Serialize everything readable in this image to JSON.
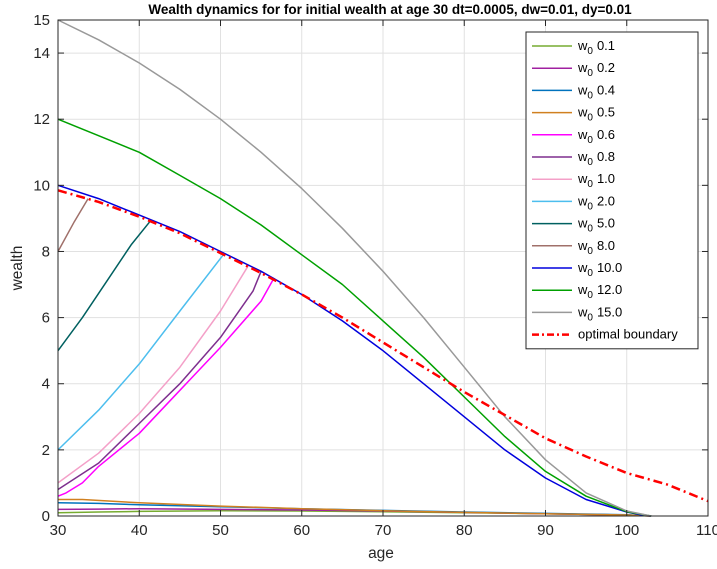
{
  "chart_data": {
    "type": "line",
    "title": "Wealth dynamics for for initial wealth at age 30 dt=0.0005, dw=0.01, dy=0.01",
    "xlabel": "age",
    "ylabel": "wealth",
    "xlim": [
      30,
      110
    ],
    "ylim": [
      0,
      15
    ],
    "xticks": [
      30,
      40,
      50,
      60,
      70,
      80,
      90,
      100,
      110
    ],
    "yticks": [
      0,
      2,
      4,
      6,
      8,
      10,
      12,
      14,
      15
    ],
    "grid": true,
    "legend_position": "top-right",
    "legend_prefix": "w",
    "legend_subscript": "0",
    "series": [
      {
        "name": "0.1",
        "color": "#77ac30",
        "dash": "solid",
        "x": [
          30,
          35,
          40,
          50,
          60,
          70,
          80,
          90,
          100,
          103
        ],
        "y": [
          0.1,
          0.12,
          0.14,
          0.16,
          0.15,
          0.13,
          0.1,
          0.07,
          0.03,
          0.0
        ]
      },
      {
        "name": "0.2",
        "color": "#a020a0",
        "dash": "solid",
        "x": [
          30,
          35,
          40,
          50,
          60,
          70,
          80,
          90,
          100,
          103
        ],
        "y": [
          0.2,
          0.21,
          0.22,
          0.2,
          0.18,
          0.15,
          0.11,
          0.07,
          0.03,
          0.0
        ]
      },
      {
        "name": "0.4",
        "color": "#0072bd",
        "dash": "solid",
        "x": [
          30,
          35,
          40,
          50,
          60,
          70,
          80,
          90,
          100,
          103
        ],
        "y": [
          0.4,
          0.38,
          0.34,
          0.28,
          0.22,
          0.17,
          0.12,
          0.08,
          0.04,
          0.0
        ]
      },
      {
        "name": "0.5",
        "color": "#d08020",
        "dash": "solid",
        "x": [
          30,
          33,
          40,
          50,
          60,
          70,
          80,
          90,
          100,
          103
        ],
        "y": [
          0.5,
          0.5,
          0.4,
          0.3,
          0.22,
          0.16,
          0.11,
          0.07,
          0.03,
          0.0
        ]
      },
      {
        "name": "0.6",
        "color": "#ff00ff",
        "dash": "solid",
        "x": [
          30,
          31,
          33,
          35,
          40,
          45,
          50,
          55,
          56.6
        ],
        "y": [
          0.6,
          0.7,
          1.0,
          1.5,
          2.5,
          3.8,
          5.1,
          6.5,
          7.2
        ]
      },
      {
        "name": "0.8",
        "color": "#7e2f8e",
        "dash": "solid",
        "x": [
          30,
          35,
          40,
          45,
          50,
          54,
          55
        ],
        "y": [
          0.8,
          1.6,
          2.8,
          4.0,
          5.4,
          6.8,
          7.4
        ]
      },
      {
        "name": "1.0",
        "color": "#f4a0c8",
        "dash": "solid",
        "x": [
          30,
          35,
          40,
          45,
          50,
          53.5
        ],
        "y": [
          1.0,
          1.9,
          3.1,
          4.5,
          6.2,
          7.6
        ]
      },
      {
        "name": "2.0",
        "color": "#4dbeee",
        "dash": "solid",
        "x": [
          30,
          35,
          40,
          45,
          50.5
        ],
        "y": [
          2.0,
          3.2,
          4.6,
          6.2,
          7.95
        ]
      },
      {
        "name": "5.0",
        "color": "#006060",
        "dash": "solid",
        "x": [
          30,
          33,
          36,
          39,
          41.3
        ],
        "y": [
          5.0,
          6.0,
          7.1,
          8.2,
          8.9
        ]
      },
      {
        "name": "8.0",
        "color": "#a0706a",
        "dash": "solid",
        "x": [
          30,
          32,
          33.7
        ],
        "y": [
          8.0,
          8.9,
          9.6
        ]
      },
      {
        "name": "10.0",
        "color": "#0000dd",
        "dash": "solid",
        "x": [
          30,
          35,
          40,
          45,
          50,
          55,
          60,
          65,
          70,
          75,
          80,
          85,
          90,
          95,
          100,
          102,
          103
        ],
        "y": [
          10.0,
          9.6,
          9.1,
          8.6,
          8.0,
          7.4,
          6.7,
          5.9,
          5.0,
          4.0,
          3.0,
          2.0,
          1.15,
          0.5,
          0.12,
          0.02,
          0.0
        ]
      },
      {
        "name": "12.0",
        "color": "#00a000",
        "dash": "solid",
        "x": [
          30,
          35,
          40,
          45,
          50,
          55,
          60,
          65,
          70,
          75,
          80,
          85,
          90,
          95,
          100,
          103
        ],
        "y": [
          12.0,
          11.5,
          11.0,
          10.3,
          9.6,
          8.8,
          7.9,
          7.0,
          5.9,
          4.8,
          3.6,
          2.4,
          1.35,
          0.6,
          0.13,
          0.0
        ]
      },
      {
        "name": "15.0",
        "color": "#999999",
        "dash": "solid",
        "x": [
          30,
          35,
          40,
          45,
          50,
          55,
          60,
          65,
          70,
          75,
          80,
          85,
          90,
          95,
          100,
          103
        ],
        "y": [
          15.0,
          14.4,
          13.7,
          12.9,
          12.0,
          11.0,
          9.9,
          8.7,
          7.4,
          6.0,
          4.5,
          3.0,
          1.7,
          0.7,
          0.15,
          0.0
        ]
      },
      {
        "name": "optimal boundary",
        "color": "#ff0000",
        "dash": "dashdot",
        "x": [
          30,
          35,
          40,
          45,
          50,
          55,
          60,
          65,
          70,
          75,
          80,
          85,
          90,
          95,
          100,
          105,
          110
        ],
        "y": [
          9.85,
          9.5,
          9.05,
          8.55,
          7.95,
          7.35,
          6.7,
          6.0,
          5.25,
          4.5,
          3.75,
          3.05,
          2.35,
          1.8,
          1.3,
          0.95,
          0.45
        ]
      }
    ]
  }
}
